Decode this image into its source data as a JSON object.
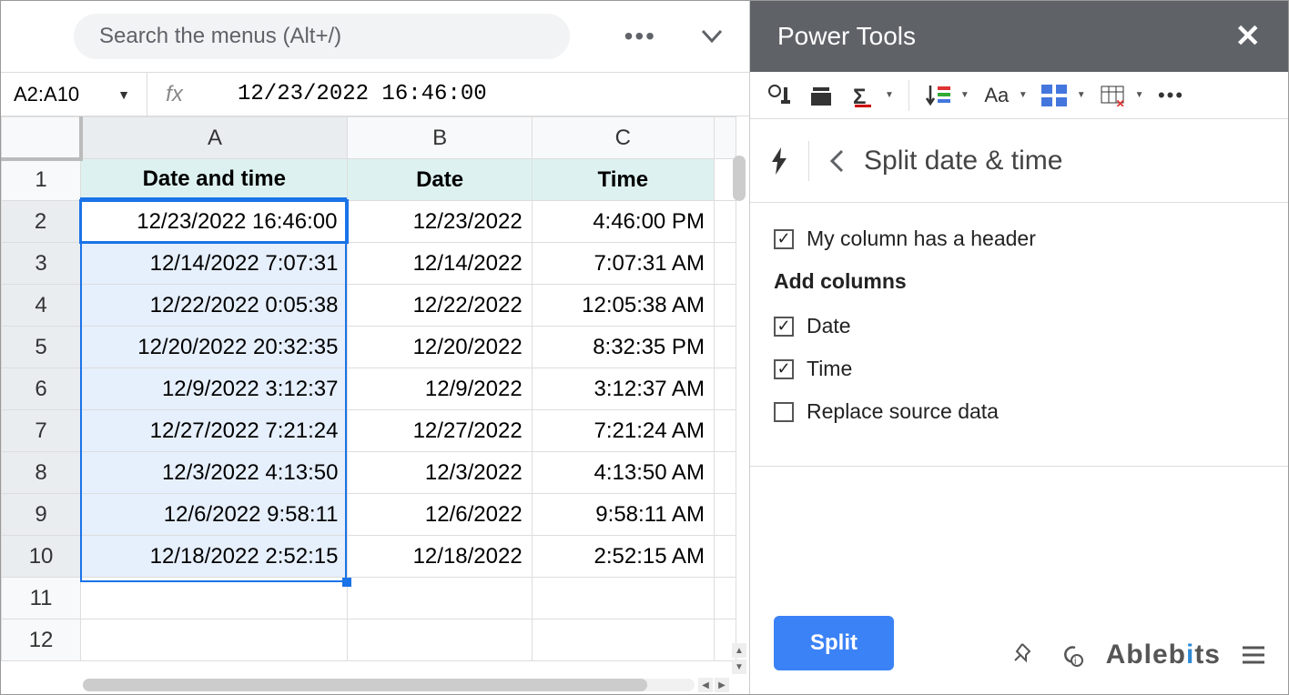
{
  "search": {
    "placeholder": "Search the menus (Alt+/)"
  },
  "nameBox": "A2:A10",
  "fxLabel": "fx",
  "formulaValue": "12/23/2022 16:46:00",
  "columns": [
    "A",
    "B",
    "C"
  ],
  "headerRow": {
    "a": "Date and time",
    "b": "Date",
    "c": "Time"
  },
  "rows": [
    {
      "n": "2",
      "a": "12/23/2022 16:46:00",
      "b": "12/23/2022",
      "c": "4:46:00 PM"
    },
    {
      "n": "3",
      "a": "12/14/2022 7:07:31",
      "b": "12/14/2022",
      "c": "7:07:31 AM"
    },
    {
      "n": "4",
      "a": "12/22/2022 0:05:38",
      "b": "12/22/2022",
      "c": "12:05:38 AM"
    },
    {
      "n": "5",
      "a": "12/20/2022 20:32:35",
      "b": "12/20/2022",
      "c": "8:32:35 PM"
    },
    {
      "n": "6",
      "a": "12/9/2022 3:12:37",
      "b": "12/9/2022",
      "c": "3:12:37 AM"
    },
    {
      "n": "7",
      "a": "12/27/2022 7:21:24",
      "b": "12/27/2022",
      "c": "7:21:24 AM"
    },
    {
      "n": "8",
      "a": "12/3/2022 4:13:50",
      "b": "12/3/2022",
      "c": "4:13:50 AM"
    },
    {
      "n": "9",
      "a": "12/6/2022 9:58:11",
      "b": "12/6/2022",
      "c": "9:58:11 AM"
    },
    {
      "n": "10",
      "a": "12/18/2022 2:52:15",
      "b": "12/18/2022",
      "c": "2:52:15 AM"
    }
  ],
  "emptyRows": [
    "11",
    "12"
  ],
  "panel": {
    "title": "Power Tools",
    "breadcrumb": "Split date & time",
    "options": {
      "headerCheckbox": {
        "label": "My column has a header",
        "checked": true
      },
      "sectionTitle": "Add columns",
      "dateCheckbox": {
        "label": "Date",
        "checked": true
      },
      "timeCheckbox": {
        "label": "Time",
        "checked": true
      },
      "replaceCheckbox": {
        "label": "Replace source data",
        "checked": false
      }
    },
    "button": "Split",
    "brand": {
      "pre": "Ableb",
      "accent": "i",
      "post": "ts"
    }
  },
  "style": {
    "selectionColor": "#1a73e8",
    "headerFill": "#ddf2f0",
    "selectedFill": "#e6effc",
    "panelHeaderBg": "#5f6368",
    "buttonBg": "#3b82f6"
  }
}
